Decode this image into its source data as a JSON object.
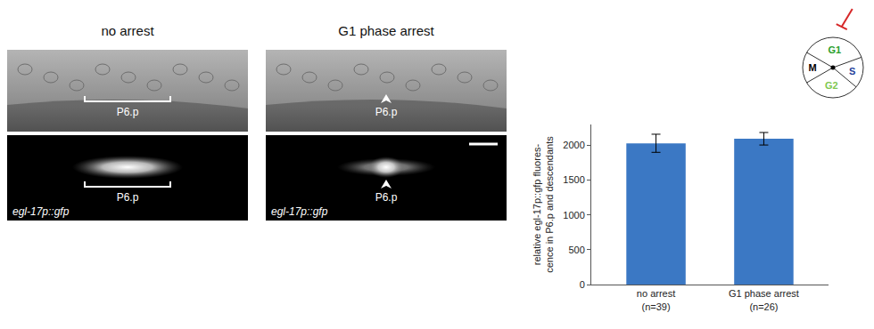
{
  "panels": [
    {
      "title": "no arrest",
      "top_label": "P6.p",
      "top_marker": "bracket",
      "bottom_label": "P6.p",
      "bottom_marker": "bracket",
      "reporter": "egl-17p::gfp",
      "scale_bar": false
    },
    {
      "title": "G1 phase arrest",
      "top_label": "P6.p",
      "top_marker": "arrowhead",
      "bottom_label": "P6.p",
      "bottom_marker": "arrowhead",
      "reporter": "egl-17p::gfp",
      "scale_bar": true
    }
  ],
  "chart_data": {
    "type": "bar",
    "categories": [
      "no arrest\n(n=39)",
      "G1 phase arrest\n(n=26)"
    ],
    "values": [
      2030,
      2095
    ],
    "errors": [
      130,
      90
    ],
    "color": "#3b78c4",
    "ylabel": "relative egl-17p::gfp fluores-\ncence in P6.p and descendants",
    "ylim": [
      0,
      2300
    ],
    "yticks": [
      0,
      500,
      1000,
      1500,
      2000
    ],
    "grid": false
  },
  "cell_cycle": {
    "phases": [
      {
        "label": "G1",
        "color": "#2ca02c"
      },
      {
        "label": "S",
        "color": "#1f3f9a"
      },
      {
        "label": "G2",
        "color": "#7ec850"
      },
      {
        "label": "M",
        "color": "#000000"
      }
    ],
    "inhibited": "G1",
    "inhibitor_color": "#d62728"
  }
}
